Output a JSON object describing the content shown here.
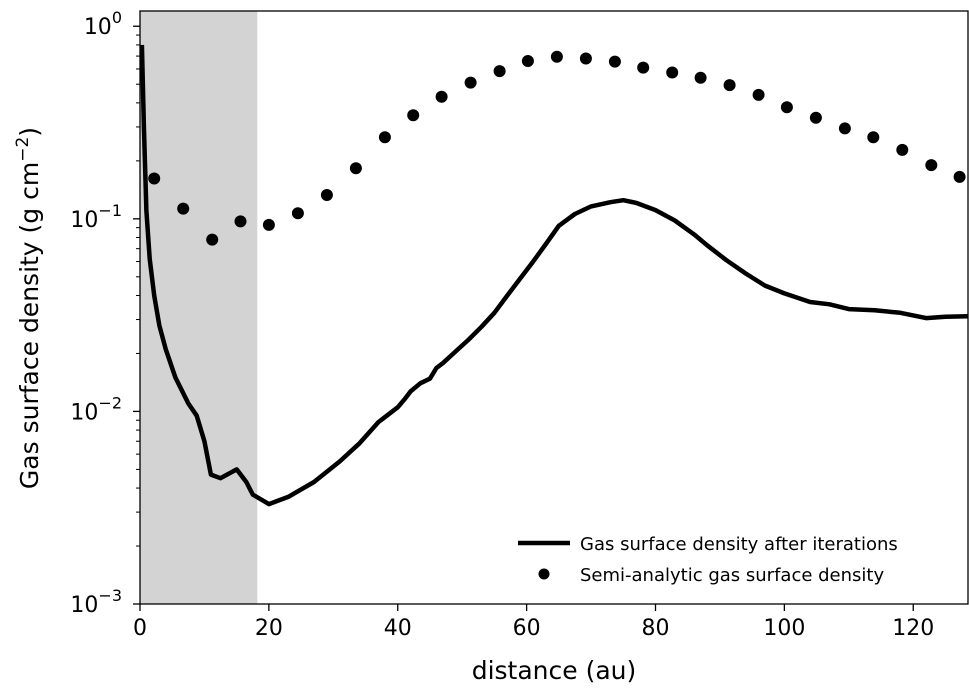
{
  "chart_data": {
    "type": "line",
    "title": "",
    "xlabel": "distance (au)",
    "ylabel_main": "Gas surface density (g cm",
    "ylabel_exp": "−2",
    "ylabel_close": ")",
    "xlim": [
      0,
      128.5
    ],
    "ylim": [
      0.001,
      1.2
    ],
    "yscale": "log",
    "grid": false,
    "legend_position": "lower-right",
    "x_ticks": [
      {
        "value": 0,
        "label": "0"
      },
      {
        "value": 20,
        "label": "20"
      },
      {
        "value": 40,
        "label": "40"
      },
      {
        "value": 60,
        "label": "60"
      },
      {
        "value": 80,
        "label": "80"
      },
      {
        "value": 100,
        "label": "100"
      },
      {
        "value": 120,
        "label": "120"
      }
    ],
    "y_ticks": [
      {
        "value": 0.001,
        "base": "10",
        "exp": "−3"
      },
      {
        "value": 0.01,
        "base": "10",
        "exp": "−2"
      },
      {
        "value": 0.1,
        "base": "10",
        "exp": "−1"
      },
      {
        "value": 1,
        "base": "10",
        "exp": "0"
      }
    ],
    "shaded_region": {
      "x0": 0,
      "x1": 18.2,
      "color": "#d3d3d3"
    },
    "series": [
      {
        "name": "Gas surface density after iterations",
        "style": "line",
        "color": "#000000",
        "points": [
          [
            0.3,
            0.8
          ],
          [
            0.6,
            0.3
          ],
          [
            1.0,
            0.11
          ],
          [
            1.5,
            0.062
          ],
          [
            2.2,
            0.04
          ],
          [
            3.0,
            0.028
          ],
          [
            4.0,
            0.021
          ],
          [
            5.5,
            0.015
          ],
          [
            7.5,
            0.011
          ],
          [
            8.8,
            0.0095
          ],
          [
            10.0,
            0.007
          ],
          [
            11.0,
            0.0047
          ],
          [
            12.5,
            0.0045
          ],
          [
            15.0,
            0.005
          ],
          [
            16.5,
            0.0043
          ],
          [
            17.5,
            0.0037
          ],
          [
            20.0,
            0.0033
          ],
          [
            23.0,
            0.0036
          ],
          [
            27.0,
            0.0043
          ],
          [
            31.0,
            0.0055
          ],
          [
            34.0,
            0.0068
          ],
          [
            37.0,
            0.0088
          ],
          [
            40.0,
            0.0105
          ],
          [
            41.0,
            0.0115
          ],
          [
            42.0,
            0.0127
          ],
          [
            43.5,
            0.014
          ],
          [
            45.0,
            0.0148
          ],
          [
            46.0,
            0.0168
          ],
          [
            47.0,
            0.0178
          ],
          [
            49.0,
            0.0205
          ],
          [
            51.0,
            0.0236
          ],
          [
            53.0,
            0.0275
          ],
          [
            55.0,
            0.0325
          ],
          [
            57.0,
            0.04
          ],
          [
            59.0,
            0.049
          ],
          [
            61.0,
            0.06
          ],
          [
            63.0,
            0.074
          ],
          [
            65.0,
            0.092
          ],
          [
            67.5,
            0.106
          ],
          [
            70.0,
            0.116
          ],
          [
            73.0,
            0.122
          ],
          [
            75.0,
            0.125
          ],
          [
            77.0,
            0.121
          ],
          [
            80.0,
            0.111
          ],
          [
            83.0,
            0.098
          ],
          [
            86.0,
            0.083
          ],
          [
            88.0,
            0.073
          ],
          [
            91.0,
            0.061
          ],
          [
            94.0,
            0.052
          ],
          [
            97.0,
            0.045
          ],
          [
            100.0,
            0.041
          ],
          [
            104.0,
            0.037
          ],
          [
            107.0,
            0.036
          ],
          [
            110.0,
            0.034
          ],
          [
            114.0,
            0.0335
          ],
          [
            118.0,
            0.0325
          ],
          [
            122.0,
            0.0305
          ],
          [
            125.0,
            0.031
          ],
          [
            128.5,
            0.0312
          ]
        ]
      },
      {
        "name": "Semi-analytic gas surface density",
        "style": "scatter",
        "color": "#000000",
        "points": [
          [
            2.2,
            0.162
          ],
          [
            6.7,
            0.113
          ],
          [
            11.2,
            0.078
          ],
          [
            15.6,
            0.097
          ],
          [
            20.0,
            0.093
          ],
          [
            24.5,
            0.107
          ],
          [
            29.0,
            0.133
          ],
          [
            33.5,
            0.183
          ],
          [
            38.0,
            0.265
          ],
          [
            42.4,
            0.345
          ],
          [
            46.8,
            0.43
          ],
          [
            51.3,
            0.51
          ],
          [
            55.8,
            0.585
          ],
          [
            60.2,
            0.66
          ],
          [
            64.7,
            0.695
          ],
          [
            69.2,
            0.68
          ],
          [
            73.7,
            0.655
          ],
          [
            78.1,
            0.61
          ],
          [
            82.6,
            0.575
          ],
          [
            87.0,
            0.54
          ],
          [
            91.5,
            0.495
          ],
          [
            96.0,
            0.44
          ],
          [
            100.4,
            0.38
          ],
          [
            104.9,
            0.335
          ],
          [
            109.4,
            0.295
          ],
          [
            113.8,
            0.265
          ],
          [
            118.3,
            0.228
          ],
          [
            122.8,
            0.19
          ],
          [
            127.2,
            0.165
          ]
        ]
      }
    ]
  }
}
